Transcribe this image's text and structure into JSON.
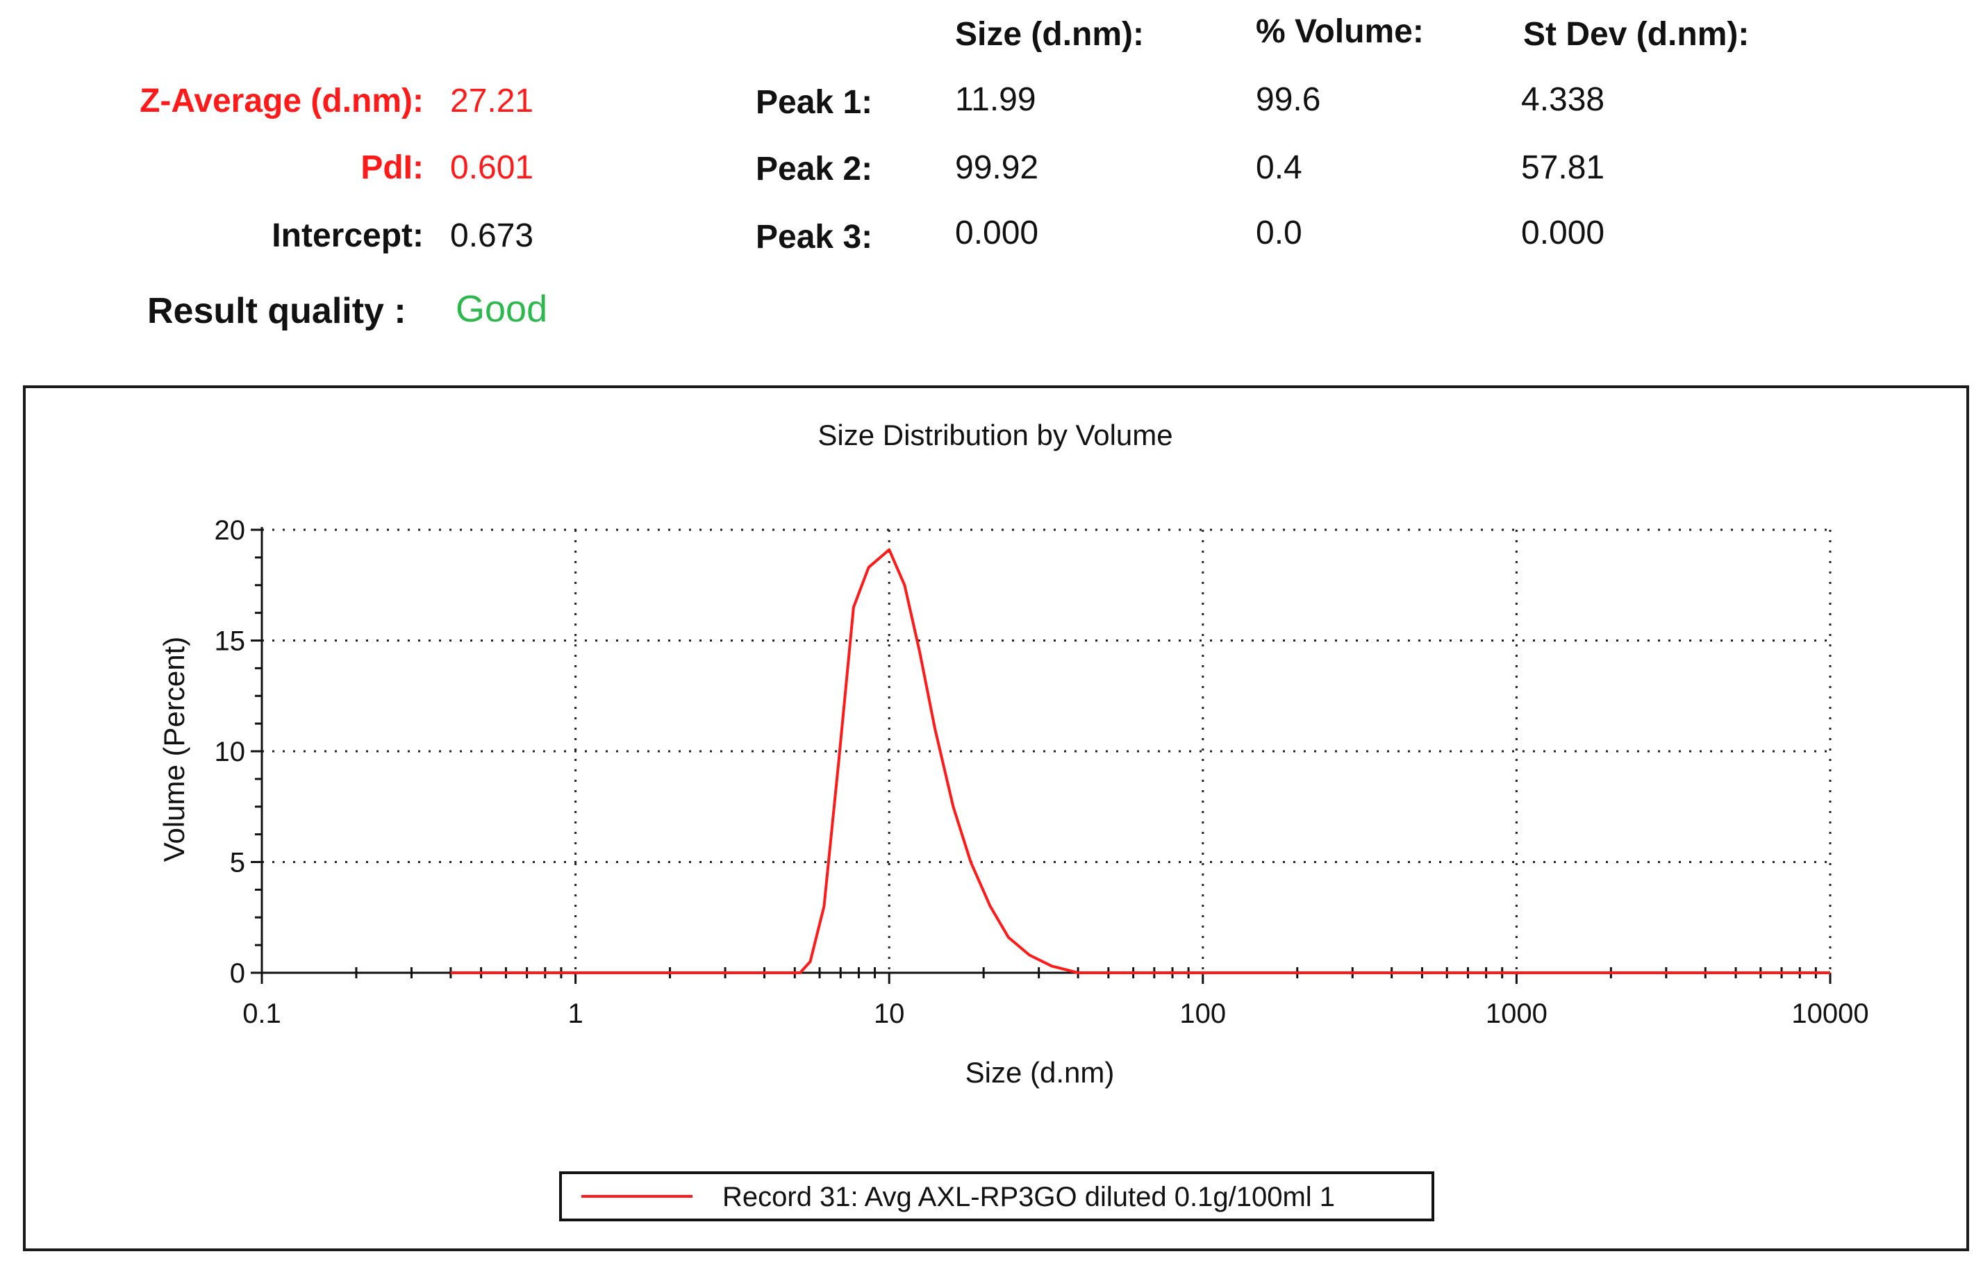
{
  "summary": {
    "z_average": {
      "label": "Z-Average (d.nm):",
      "value": "27.21",
      "color": "#ff1a1a"
    },
    "pdi": {
      "label": "PdI:",
      "value": "0.601",
      "color": "#ff1a1a"
    },
    "intercept": {
      "label": "Intercept:",
      "value": "0.673"
    },
    "result_quality": {
      "label": "Result quality :",
      "value": "Good",
      "color": "#2db84d"
    }
  },
  "peaks_table": {
    "headers": [
      "Size (d.nm):",
      "% Volume:",
      "St Dev (d.nm):"
    ],
    "rows": [
      {
        "label": "Peak 1:",
        "size": "11.99",
        "volume": "99.6",
        "stdev": "4.338"
      },
      {
        "label": "Peak 2:",
        "size": "99.92",
        "volume": "0.4",
        "stdev": "57.81"
      },
      {
        "label": "Peak 3:",
        "size": "0.000",
        "volume": "0.0",
        "stdev": "0.000"
      }
    ]
  },
  "chart_data": {
    "type": "line",
    "title": "Size Distribution by Volume",
    "xlabel": "Size (d.nm)",
    "ylabel": "Volume (Percent)",
    "x_scale": "log",
    "xlim": [
      0.1,
      10000
    ],
    "ylim": [
      0,
      20
    ],
    "x_ticks": [
      "0.1",
      "1",
      "10",
      "100",
      "1000",
      "10000"
    ],
    "y_ticks": [
      "0",
      "5",
      "10",
      "15",
      "20"
    ],
    "grid": true,
    "legend_position": "bottom-center",
    "series": [
      {
        "name": "Record 31: Avg AXL-RP3GO diluted 0.1g/100ml  1",
        "color": "#ff1a1a",
        "x": [
          0.4,
          1,
          3,
          5.2,
          5.6,
          6.2,
          6.9,
          7.7,
          8.6,
          10.0,
          11.2,
          12.5,
          14.0,
          16.0,
          18.2,
          21.0,
          24.0,
          28.0,
          33.0,
          40.0,
          100,
          1000,
          10000
        ],
        "y": [
          0,
          0,
          0,
          0,
          0.5,
          3.0,
          9.5,
          16.5,
          18.3,
          19.1,
          17.5,
          14.5,
          11.0,
          7.5,
          5.0,
          3.0,
          1.6,
          0.8,
          0.3,
          0,
          0,
          0,
          0
        ]
      }
    ]
  }
}
